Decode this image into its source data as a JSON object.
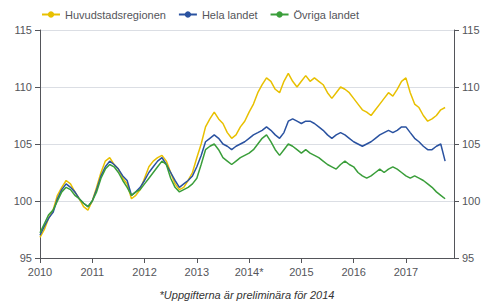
{
  "chart_data": {
    "type": "line",
    "annotations": [
      "*Uppgifterna är preliminära för 2014"
    ],
    "legend": "upper left",
    "grid": true,
    "xlim": [
      2010,
      2017.92
    ],
    "xticks": [
      2010,
      2011,
      2012,
      2013,
      {
        "value": 2014,
        "label": "2014*"
      },
      2015,
      2016,
      2017
    ],
    "ylim": [
      95,
      115
    ],
    "yticks": [
      95,
      100,
      105,
      110,
      115
    ],
    "y2lim": [
      95,
      115
    ],
    "y2ticks": [
      95,
      100,
      105,
      110,
      115
    ],
    "x": [
      2010,
      2010.0833,
      2010.1667,
      2010.25,
      2010.3333,
      2010.4167,
      2010.5,
      2010.5833,
      2010.6667,
      2010.75,
      2010.8333,
      2010.9167,
      2011,
      2011.0833,
      2011.1667,
      2011.25,
      2011.3333,
      2011.4167,
      2011.5,
      2011.5833,
      2011.6667,
      2011.75,
      2011.8333,
      2011.9167,
      2012,
      2012.0833,
      2012.1667,
      2012.25,
      2012.3333,
      2012.4167,
      2012.5,
      2012.5833,
      2012.6667,
      2012.75,
      2012.8333,
      2012.9167,
      2013,
      2013.0833,
      2013.1667,
      2013.25,
      2013.3333,
      2013.4167,
      2013.5,
      2013.5833,
      2013.6667,
      2013.75,
      2013.8333,
      2013.9167,
      2014,
      2014.0833,
      2014.1667,
      2014.25,
      2014.3333,
      2014.4167,
      2014.5,
      2014.5833,
      2014.6667,
      2014.75,
      2014.8333,
      2014.9167,
      2015,
      2015.0833,
      2015.1667,
      2015.25,
      2015.3333,
      2015.4167,
      2015.5,
      2015.5833,
      2015.6667,
      2015.75,
      2015.8333,
      2015.9167,
      2016,
      2016.0833,
      2016.1667,
      2016.25,
      2016.3333,
      2016.4167,
      2016.5,
      2016.5833,
      2016.6667,
      2016.75,
      2016.8333,
      2016.9167,
      2017,
      2017.0833,
      2017.1667,
      2017.25,
      2017.3333,
      2017.4167,
      2017.5,
      2017.5833,
      2017.6667,
      2017.75
    ],
    "series": [
      {
        "name": "Huvudstadsregionen",
        "color": "#e8c000",
        "values": [
          96.8,
          97.5,
          98.5,
          99.2,
          100.5,
          101.2,
          101.8,
          101.5,
          100.8,
          100.2,
          99.5,
          99.2,
          100.0,
          101.2,
          102.5,
          103.5,
          103.8,
          103.2,
          102.8,
          102.0,
          101.5,
          100.2,
          100.5,
          101.0,
          102.0,
          103.0,
          103.5,
          103.8,
          104.0,
          103.5,
          102.5,
          101.5,
          101.0,
          101.2,
          101.8,
          102.5,
          103.8,
          105.0,
          106.5,
          107.2,
          107.8,
          107.2,
          106.8,
          106.0,
          105.5,
          105.8,
          106.5,
          107.0,
          107.8,
          108.5,
          109.5,
          110.2,
          110.8,
          110.5,
          109.8,
          109.5,
          110.5,
          111.2,
          110.5,
          110.0,
          110.5,
          111.0,
          110.5,
          110.8,
          110.5,
          110.2,
          109.5,
          109.0,
          109.5,
          110.0,
          109.8,
          109.5,
          109.0,
          108.5,
          108.0,
          107.8,
          107.5,
          108.0,
          108.5,
          109.0,
          109.5,
          109.2,
          109.8,
          110.5,
          110.8,
          109.5,
          108.5,
          108.2,
          107.5,
          107.0,
          107.2,
          107.5,
          108.0,
          108.2
        ]
      },
      {
        "name": "Hela landet",
        "color": "#2a52a0",
        "values": [
          97.0,
          97.8,
          98.5,
          99.0,
          100.2,
          101.0,
          101.5,
          101.2,
          100.8,
          100.2,
          99.8,
          99.5,
          100.0,
          101.0,
          102.2,
          103.0,
          103.5,
          103.2,
          102.8,
          102.2,
          101.8,
          100.5,
          100.8,
          101.2,
          101.8,
          102.5,
          103.0,
          103.5,
          103.8,
          103.2,
          102.5,
          101.8,
          101.2,
          101.5,
          101.8,
          102.2,
          103.0,
          104.0,
          105.2,
          105.5,
          105.8,
          105.5,
          105.0,
          104.8,
          104.5,
          104.8,
          105.0,
          105.2,
          105.5,
          105.8,
          106.0,
          106.2,
          106.5,
          106.2,
          105.8,
          105.5,
          106.0,
          107.0,
          107.2,
          107.0,
          106.8,
          107.0,
          107.0,
          106.8,
          106.5,
          106.2,
          105.8,
          105.5,
          105.8,
          106.0,
          105.8,
          105.5,
          105.2,
          105.0,
          104.8,
          105.0,
          105.2,
          105.5,
          105.8,
          106.0,
          106.2,
          106.0,
          106.2,
          106.5,
          106.5,
          106.0,
          105.5,
          105.2,
          104.8,
          104.5,
          104.5,
          104.8,
          105.0,
          103.5
        ]
      },
      {
        "name": "Övriga landet",
        "color": "#3a9e3a",
        "values": [
          97.2,
          98.0,
          98.8,
          99.2,
          100.0,
          100.8,
          101.2,
          101.0,
          100.5,
          100.2,
          99.8,
          99.5,
          100.0,
          100.8,
          102.0,
          102.8,
          103.2,
          103.0,
          102.5,
          101.8,
          101.2,
          100.5,
          100.8,
          101.0,
          101.5,
          102.0,
          102.5,
          103.0,
          103.5,
          103.2,
          102.0,
          101.2,
          100.8,
          101.0,
          101.2,
          101.5,
          102.0,
          103.2,
          104.5,
          104.8,
          105.0,
          104.5,
          103.8,
          103.5,
          103.2,
          103.5,
          103.8,
          104.0,
          104.2,
          104.5,
          105.0,
          105.5,
          105.8,
          105.2,
          104.5,
          104.0,
          104.5,
          105.0,
          104.8,
          104.5,
          104.2,
          104.5,
          104.2,
          104.0,
          103.8,
          103.5,
          103.2,
          103.0,
          102.8,
          103.2,
          103.5,
          103.2,
          103.0,
          102.5,
          102.2,
          102.0,
          102.2,
          102.5,
          102.8,
          102.5,
          102.8,
          103.0,
          102.8,
          102.5,
          102.2,
          102.0,
          102.2,
          102.0,
          101.8,
          101.5,
          101.2,
          100.8,
          100.5,
          100.2
        ]
      }
    ]
  }
}
